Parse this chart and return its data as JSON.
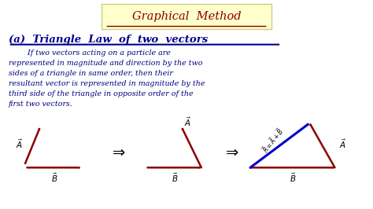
{
  "bg_color": "#ffffff",
  "title_box_color": "#ffffcc",
  "title_text": "Graphical  Method",
  "title_color": "#8b0000",
  "subtitle_text": "(a)  Triangle  Law  of  two  vectors",
  "subtitle_color": "#00008b",
  "body_text": "        If two vectors acting on a particle are\nrepresented in magnitude and direction by the two\nsides of a triangle in same order, then their\nresultant vector is represented in magnitude by the\nthird side of the triangle in opposite order of the\nfirst two vectors.",
  "body_color": "#000080",
  "arrow_dark_red": "#8b0000",
  "arrow_blue": "#0000cd",
  "arrow_black": "#000000"
}
